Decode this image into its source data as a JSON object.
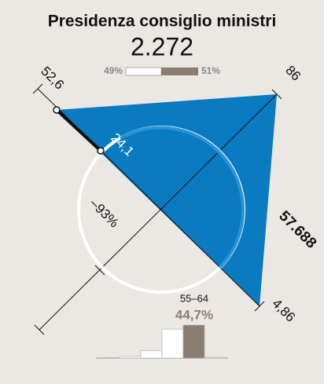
{
  "title": "Presidenza consiglio ministri",
  "total": "2.272",
  "share_bar": {
    "left": {
      "value": 49,
      "label": "49%"
    },
    "right": {
      "value": 51,
      "label": "51%"
    }
  },
  "axes": {
    "top_left": "52,6",
    "top_right": "86",
    "bottom_right": "4,86"
  },
  "inner_label": "24,1",
  "change": "–93%",
  "side_value": "57.688",
  "age_group": {
    "label": "55–64",
    "value": "44,7%"
  },
  "histogram": {
    "values": [
      0.5,
      2,
      9,
      36,
      41,
      1
    ],
    "colors": [
      "#ffffff",
      "#ffffff",
      "#ffffff",
      "#ffffff",
      "#8a7e72",
      "#ffffff"
    ]
  }
}
